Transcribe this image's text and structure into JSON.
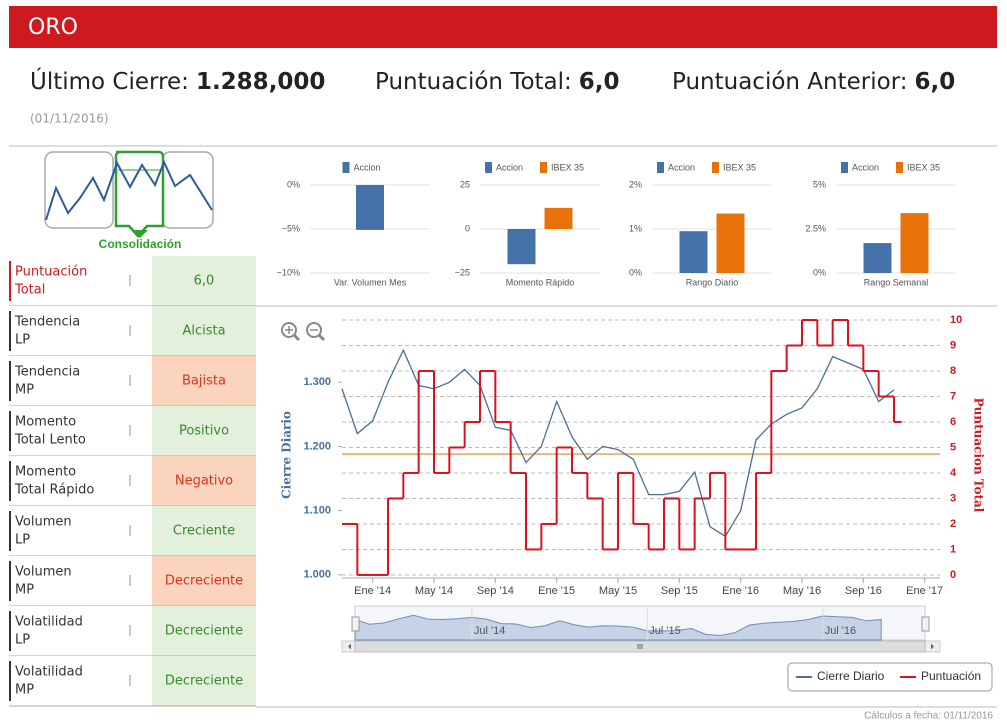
{
  "header": {
    "title": "ORO"
  },
  "summary": [
    {
      "label": "Último Cierre:",
      "value": "1.288,000"
    },
    {
      "label": "Puntuación Total:",
      "value": "6,0"
    },
    {
      "label": "Puntuación Anterior:",
      "value": "6,0"
    }
  ],
  "date": "(01/11/2016)",
  "pattern": {
    "label": "Consolidación"
  },
  "indicators": [
    {
      "label": [
        "Puntuación",
        "Total"
      ],
      "value": "6,0",
      "bg": "#e2f0dc",
      "text_color": "#3a8a2e",
      "label_color": "#cc1a1f"
    },
    {
      "label": [
        "Tendencia",
        "LP"
      ],
      "value": "Alcista",
      "bg": "#e2f0dc",
      "text_color": "#3a8a2e",
      "label_color": "#333333"
    },
    {
      "label": [
        "Tendencia",
        "MP"
      ],
      "value": "Bajista",
      "bg": "#fad4bc",
      "text_color": "#d9341e",
      "label_color": "#333333"
    },
    {
      "label": [
        "Momento",
        "Total Lento"
      ],
      "value": "Positivo",
      "bg": "#e2f0dc",
      "text_color": "#3a8a2e",
      "label_color": "#333333"
    },
    {
      "label": [
        "Momento",
        "Total Rápido"
      ],
      "value": "Negativo",
      "bg": "#fad4bc",
      "text_color": "#d9341e",
      "label_color": "#333333"
    },
    {
      "label": [
        "Volumen",
        "LP"
      ],
      "value": "Creciente",
      "bg": "#e2f0dc",
      "text_color": "#3a8a2e",
      "label_color": "#333333"
    },
    {
      "label": [
        "Volumen",
        "MP"
      ],
      "value": "Decreciente",
      "bg": "#fad4bc",
      "text_color": "#d9341e",
      "label_color": "#333333"
    },
    {
      "label": [
        "Volatilidad",
        "LP"
      ],
      "value": "Decreciente",
      "bg": "#e2f0dc",
      "text_color": "#3a8a2e",
      "label_color": "#333333"
    },
    {
      "label": [
        "Volatilidad",
        "MP"
      ],
      "value": "Decreciente",
      "bg": "#e2f0dc",
      "text_color": "#3a8a2e",
      "label_color": "#333333"
    }
  ],
  "chart_data": [
    {
      "type": "line",
      "x": [
        "2013-11",
        "2013-12",
        "2014-01",
        "2014-02",
        "2014-03",
        "2014-04",
        "2014-05",
        "2014-06",
        "2014-07",
        "2014-08",
        "2014-09",
        "2014-10",
        "2014-11",
        "2014-12",
        "2015-01",
        "2015-02",
        "2015-03",
        "2015-04",
        "2015-05",
        "2015-06",
        "2015-07",
        "2015-08",
        "2015-09",
        "2015-10",
        "2015-11",
        "2015-12",
        "2016-01",
        "2016-02",
        "2016-03",
        "2016-04",
        "2016-05",
        "2016-06",
        "2016-07",
        "2016-08",
        "2016-09",
        "2016-10",
        "2016-11"
      ],
      "series": [
        {
          "name": "Cierre Diario",
          "color": "#4a6f9b",
          "values": [
            1290,
            1220,
            1240,
            1300,
            1350,
            1295,
            1290,
            1300,
            1320,
            1295,
            1230,
            1225,
            1175,
            1200,
            1270,
            1215,
            1180,
            1200,
            1195,
            1180,
            1125,
            1125,
            1130,
            1160,
            1075,
            1060,
            1100,
            1210,
            1235,
            1250,
            1260,
            1290,
            1340,
            1330,
            1320,
            1270,
            1288
          ]
        },
        {
          "name": "Puntuación",
          "color": "#d9121e",
          "axis": "y2",
          "step": true,
          "values": [
            2,
            0,
            0,
            3,
            4,
            8,
            4,
            5,
            6,
            8,
            6,
            4,
            1,
            2,
            5,
            4,
            3,
            1,
            4,
            2,
            1,
            3,
            1,
            3,
            4,
            1,
            1,
            4,
            8,
            9,
            10,
            9,
            10,
            9,
            8,
            7,
            6
          ]
        }
      ],
      "ylabel": "Cierre Diario",
      "y2label": "Puntuacion Total",
      "xlim": [
        "2013-11",
        "2017-02"
      ],
      "xticks": [
        {
          "value": "2014-01",
          "label": "Ene '14"
        },
        {
          "value": "2014-05",
          "label": "May '14"
        },
        {
          "value": "2014-09",
          "label": "Sep '14"
        },
        {
          "value": "2015-01",
          "label": "Ene '15"
        },
        {
          "value": "2015-05",
          "label": "May '15"
        },
        {
          "value": "2015-09",
          "label": "Sep '15"
        },
        {
          "value": "2016-01",
          "label": "Ene '16"
        },
        {
          "value": "2016-05",
          "label": "May '16"
        },
        {
          "value": "2016-09",
          "label": "Sep '16"
        },
        {
          "value": "2017-01",
          "label": "Ene '17"
        }
      ],
      "ylim": [
        995,
        1397
      ],
      "yticks": [
        {
          "value": 1000,
          "label": "1.000"
        },
        {
          "value": 1100,
          "label": "1.100"
        },
        {
          "value": 1200,
          "label": "1.200"
        },
        {
          "value": 1300,
          "label": "1.300"
        }
      ],
      "y2lim": [
        -0.12,
        10
      ],
      "y2ticks": [
        0,
        1,
        2,
        3,
        4,
        5,
        6,
        7,
        8,
        9,
        10
      ],
      "grid": true,
      "reference_line": {
        "value": 1188,
        "color": "#e8b87a"
      },
      "navigator": {
        "xticks": [
          {
            "value": "2014-07",
            "label": "Jul '14"
          },
          {
            "value": "2015-07",
            "label": "Jul '15"
          },
          {
            "value": "2016-07",
            "label": "Jul '16"
          }
        ]
      },
      "legend": "bottom-right"
    },
    {
      "type": "bar",
      "categories": [
        "Var. Volumen Mes"
      ],
      "series": [
        {
          "name": "Accion",
          "color": "#4472a8",
          "values": [
            -5.1
          ]
        }
      ],
      "ylim": [
        -10,
        0
      ],
      "yticks": [
        {
          "value": 0,
          "label": "0%"
        },
        {
          "value": -5,
          "label": "−5%"
        },
        {
          "value": -10,
          "label": "−10%"
        }
      ]
    },
    {
      "type": "bar",
      "categories": [
        "Momento Rápido"
      ],
      "series": [
        {
          "name": "Accion",
          "color": "#4472a8",
          "values": [
            -20
          ]
        },
        {
          "name": "IBEX 35",
          "color": "#e8710a",
          "values": [
            12
          ]
        }
      ],
      "ylim": [
        -25,
        25
      ],
      "yticks": [
        {
          "value": 25,
          "label": "25"
        },
        {
          "value": 0,
          "label": "0"
        },
        {
          "value": -25,
          "label": "−25"
        }
      ]
    },
    {
      "type": "bar",
      "categories": [
        "Rango Diario"
      ],
      "series": [
        {
          "name": "Accion",
          "color": "#4472a8",
          "values": [
            0.95
          ]
        },
        {
          "name": "IBEX 35",
          "color": "#e8710a",
          "values": [
            1.35
          ]
        }
      ],
      "ylim": [
        0,
        2
      ],
      "yticks": [
        {
          "value": 2,
          "label": "2%"
        },
        {
          "value": 1,
          "label": "1%"
        },
        {
          "value": 0,
          "label": "0%"
        }
      ]
    },
    {
      "type": "bar",
      "categories": [
        "Rango Semanal"
      ],
      "series": [
        {
          "name": "Accion",
          "color": "#4472a8",
          "values": [
            1.7
          ]
        },
        {
          "name": "IBEX 35",
          "color": "#e8710a",
          "values": [
            3.4
          ]
        }
      ],
      "ylim": [
        0,
        5
      ],
      "yticks": [
        {
          "value": 5,
          "label": "5%"
        },
        {
          "value": 2.5,
          "label": "2.5%"
        },
        {
          "value": 0,
          "label": "0%"
        }
      ]
    }
  ],
  "footer": "Cálculos a fecha: 01/11/2016"
}
